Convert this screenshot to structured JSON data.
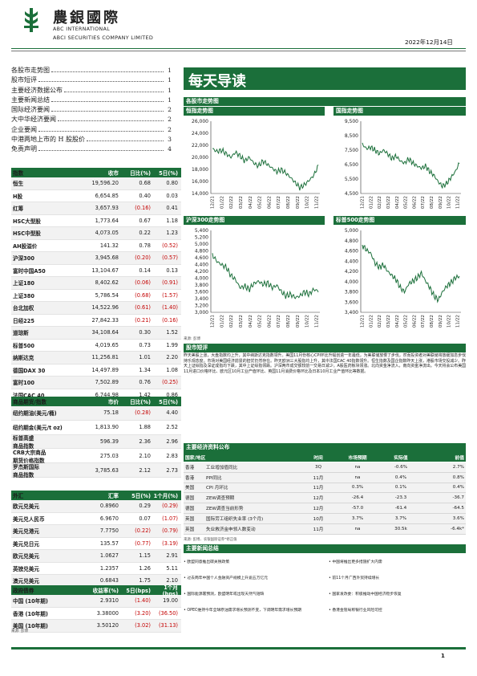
{
  "header": {
    "cn_name": "農銀國際",
    "en_name1": "ABC INTERNATIONAL",
    "en_name2": "ABCI SECURITIES COMPANY LIMITED",
    "date": "2022年12月14日",
    "brand_color": "#1b6f3a"
  },
  "toc": [
    {
      "label": "各股市走势图",
      "page": "1"
    },
    {
      "label": "股市短评",
      "page": "1"
    },
    {
      "label": "主要经济数据公布",
      "page": "1"
    },
    {
      "label": "主要新闻总结",
      "page": "1"
    },
    {
      "label": "国际经济要闻",
      "page": "2"
    },
    {
      "label": "大中华经济要闻",
      "page": "2"
    },
    {
      "label": "企业要闻",
      "page": "2"
    },
    {
      "label": "中港两地上市的 H 股股价",
      "page": "3"
    },
    {
      "label": "免责声明",
      "page": "4"
    }
  ],
  "title": "每天导读",
  "indices": {
    "headers": [
      "指数",
      "收市",
      "日比(%)",
      "5日(%)"
    ],
    "rows": [
      [
        "恒生",
        "19,596.20",
        "0.68",
        "0.80"
      ],
      [
        "H股",
        "6,654.85",
        "0.40",
        "0.03"
      ],
      [
        "红筹",
        "3,657.93",
        "(0.16)",
        "0.41"
      ],
      [
        "HSC大型股",
        "1,773.64",
        "0.67",
        "1.18"
      ],
      [
        "HSC中型股",
        "4,073.05",
        "0.22",
        "1.23"
      ],
      [
        "AH股溢价",
        "141.32",
        "0.78",
        "(0.52)"
      ],
      [
        "沪深300",
        "3,945.68",
        "(0.20)",
        "(0.57)"
      ],
      [
        "富时中国A50",
        "13,104.67",
        "0.14",
        "0.13"
      ],
      [
        "上证180",
        "8,402.62",
        "(0.06)",
        "(0.91)"
      ],
      [
        "上证380",
        "5,786.54",
        "(0.68)",
        "(1.57)"
      ],
      [
        "台北加权",
        "14,522.96",
        "(0.61)",
        "(1.40)"
      ],
      [
        "日经225",
        "27,842.33",
        "(0.21)",
        "(0.16)"
      ],
      [
        "道琼斯",
        "34,108.64",
        "0.30",
        "1.52"
      ],
      [
        "标普500",
        "4,019.65",
        "0.73",
        "1.99"
      ],
      [
        "纳斯达克",
        "11,256.81",
        "1.01",
        "2.20"
      ],
      [
        "德国DAX 30",
        "14,497.89",
        "1.34",
        "1.08"
      ],
      [
        "富时100",
        "7,502.89",
        "0.76",
        "(0.25)"
      ],
      [
        "法国CAC 40",
        "6,744.98",
        "1.42",
        "0.86"
      ]
    ]
  },
  "commodities": {
    "headers": [
      "商品期货/指数",
      "市价",
      "日比(%)",
      "5日(%)"
    ],
    "rows": [
      [
        "纽约期油(美元/桶)",
        "75.18",
        "(0.28)",
        "4.40"
      ],
      [
        "纽约期金(美元/t oz)",
        "1,813.90",
        "1.88",
        "2.52"
      ],
      [
        "标普高盛\n商品指数",
        "596.39",
        "2.36",
        "2.96"
      ],
      [
        "CRB大宗商品\n期货价格指数",
        "275.03",
        "2.10",
        "2.83"
      ],
      [
        "罗杰斯国际\n商品指数",
        "3,785.63",
        "2.12",
        "2.73"
      ]
    ]
  },
  "fx": {
    "headers": [
      "外汇",
      "汇率",
      "5日(%)",
      "1个月(%)"
    ],
    "rows": [
      [
        "欧元兑美元",
        "0.8960",
        "0.29",
        "(0.29)"
      ],
      [
        "美元兑人民币",
        "6.9670",
        "0.07",
        "(1.07)"
      ],
      [
        "美元兑港元",
        "7.7750",
        "(0.22)",
        "(0.79)"
      ],
      [
        "美元兑日元",
        "135.57",
        "(0.77)",
        "(3.19)"
      ],
      [
        "欧元兑美元",
        "1.0627",
        "1.15",
        "2.91"
      ],
      [
        "英镑兑美元",
        "1.2357",
        "1.26",
        "5.11"
      ],
      [
        "澳元兑美元",
        "0.6843",
        "1.75",
        "2.10"
      ]
    ]
  },
  "bonds": {
    "headers": [
      "政府债券",
      "收益率(%)",
      "5日(bps)",
      "1个月(bps)"
    ],
    "rows": [
      [
        "中国 (10年期)",
        "2.9310",
        "(1.40)",
        "19.00"
      ],
      [
        "香港 (10年期)",
        "3.38000",
        "(3.20)",
        "(36.50)"
      ],
      [
        "美国 (10年期)",
        "3.50120",
        "(3.02)",
        "(31.13)"
      ]
    ],
    "source": "来源: 彭博"
  },
  "charts": {
    "section_label": "各股市走势图",
    "source": "来源: 彭博",
    "x_ticks": [
      "12/21",
      "01/22",
      "02/22",
      "03/22",
      "04/22",
      "05/22",
      "06/22",
      "07/22",
      "08/22",
      "09/22",
      "10/22",
      "11/22"
    ],
    "items": [
      {
        "title": "恒指走势图",
        "y_ticks": [
          "26,000",
          "24,000",
          "22,000",
          "20,000",
          "18,000",
          "16,000",
          "14,000"
        ]
      },
      {
        "title": "国指走势图",
        "y_ticks": [
          "9,500",
          "8,500",
          "7,500",
          "6,500",
          "5,500",
          "4,500"
        ]
      },
      {
        "title": "沪深300走势图",
        "y_ticks": [
          "5,400",
          "5,200",
          "5,000",
          "4,800",
          "4,600",
          "4,400",
          "4,200",
          "4,000",
          "3,800",
          "3,600",
          "3,400",
          "3,200",
          "3,000"
        ]
      },
      {
        "title": "标普500走势图",
        "y_ticks": [
          "5,000",
          "4,800",
          "4,600",
          "4,400",
          "4,200",
          "4,000",
          "3,800",
          "3,600",
          "3,400"
        ]
      }
    ]
  },
  "commentary": {
    "title": "股市短评",
    "text": "昨天美股上涨，大盘指数均上升，其中纳斯达克指数领升。美国11月份核心CPI环比升幅创逾一年最低，为美联储放慢了步伐，然而投资者对美联储将放缓加息步伐持乐观态度。市场对美国经济前景的担忧仍然存在。昨天欧洲三大股指均上升，其中法国CAC 40指数领升。恒生指数及国企指数昨天上涨，港股市场交投减少。昨天上证综指及深证成指均下跌，其中上证综指领跌。沪深两市成交额较前一交易日减少。A股医药板块领涨。北向资金净流入，南向资金净流出。今天将会公布美国11月进口价格环比、欧元区10月工业产值环比、英国11月消费价格环比及日本10月工业产值环比等数据。"
  },
  "eco": {
    "title": "主要经济资料公布",
    "headers": [
      "国家/地区",
      "经济指标",
      "时间",
      "市场预期",
      "实际值",
      "前值"
    ],
    "rows": [
      [
        "香港",
        "工业增加值同比",
        "3Q",
        "na",
        "-0.6%",
        "2.7%"
      ],
      [
        "香港",
        "PPI同比",
        "11月",
        "na",
        "0.4%",
        "0.8%"
      ],
      [
        "美国",
        "CPI 月环比",
        "11月",
        "0.3%",
        "0.1%",
        "0.4%"
      ],
      [
        "德国",
        "ZEW调查预期",
        "12月",
        "-26.4",
        "-23.3",
        "-36.7"
      ],
      [
        "德国",
        "ZEW调查当前形势",
        "12月",
        "-57.0",
        "-61.4",
        "-64.5"
      ],
      [
        "英国",
        "国际劳工组织失业率 (3个月)",
        "10月",
        "3.7%",
        "3.7%",
        "3.6%"
      ],
      [
        "英国",
        "失业救济金申领人数变动",
        "11月",
        "na",
        "30.5k",
        "-6.4k*"
      ]
    ],
    "source": "来源: 彭博、农银国际证券*修正值"
  },
  "news": {
    "title": "主要新闻总结",
    "left": [
      "• 欧盟同意推出碳关税政策",
      "• 过去两年中国个人金融资产规模上升逾五万亿元",
      "• 国际能源署预测，欧盟明年或出现天然气短缺",
      "• OPEC维持今年全球原油需求增长预测不变，下调明年需求增长预期"
    ],
    "right": [
      "• 中国将推出更多措施扩大内需",
      "• 前11个月广西外贸持续增长",
      "• 国家发改委：积极推动中国经济稳步恢复",
      "• 香港金管局称银行业风险可控"
    ]
  },
  "footer": {
    "page": "1"
  }
}
